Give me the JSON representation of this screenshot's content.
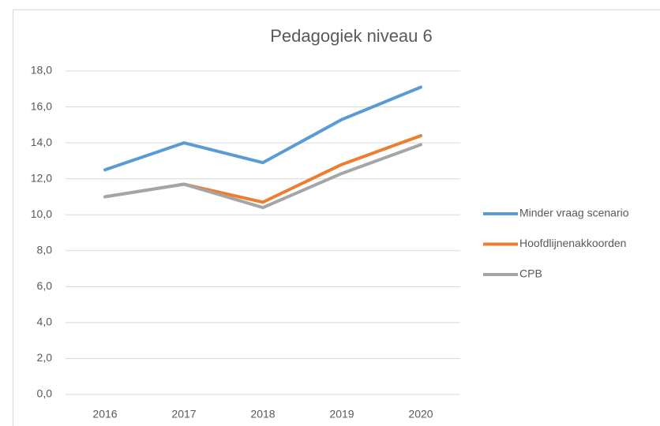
{
  "chart_data": {
    "type": "line",
    "title": "Pedagogiek niveau 6",
    "categories": [
      "2016",
      "2017",
      "2018",
      "2019",
      "2020"
    ],
    "series": [
      {
        "name": "Minder vraag scenario",
        "color": "#5b9bd5",
        "values": [
          12.5,
          14.0,
          12.9,
          15.3,
          17.1
        ]
      },
      {
        "name": "Hoofdlijnenakkoorden",
        "color": "#ed7d31",
        "values": [
          11.0,
          11.7,
          10.7,
          12.8,
          14.4
        ]
      },
      {
        "name": "CPB",
        "color": "#a5a5a5",
        "values": [
          11.0,
          11.7,
          10.4,
          12.3,
          13.9
        ]
      }
    ],
    "ylim": [
      0,
      18
    ],
    "yticks": [
      {
        "value": 0,
        "label": "0,0"
      },
      {
        "value": 2,
        "label": "2,0"
      },
      {
        "value": 4,
        "label": "4,0"
      },
      {
        "value": 6,
        "label": "6,0"
      },
      {
        "value": 8,
        "label": "8,0"
      },
      {
        "value": 10,
        "label": "10,0"
      },
      {
        "value": 12,
        "label": "12,0"
      },
      {
        "value": 14,
        "label": "14,0"
      },
      {
        "value": 16,
        "label": "16,0"
      },
      {
        "value": 18,
        "label": "18,0"
      }
    ],
    "grid": true,
    "legend": "right"
  }
}
